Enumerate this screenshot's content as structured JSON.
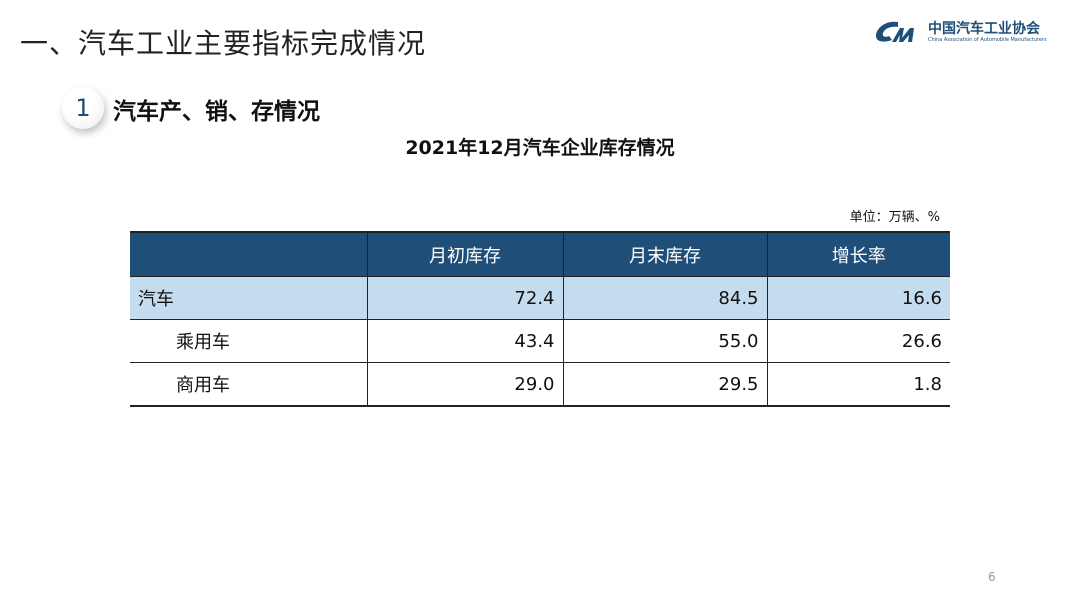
{
  "header": {
    "title": "一、汽车工业主要指标完成情况",
    "logo": {
      "cn": "中国汽车工业协会",
      "en": "China Association of Automobile Manufacturers"
    }
  },
  "section": {
    "number": "1",
    "title": "汽车产、销、存情况"
  },
  "table": {
    "title": "2021年12月汽车企业库存情况",
    "unit": "单位：万辆、%",
    "columns": [
      "",
      "月初库存",
      "月末库存",
      "增长率"
    ],
    "rows": [
      {
        "label": "汽车",
        "values": [
          "72.4",
          "84.5",
          "16.6"
        ]
      },
      {
        "label": "乘用车",
        "values": [
          "43.4",
          "55.0",
          "26.6"
        ]
      },
      {
        "label": "商用车",
        "values": [
          "29.0",
          "29.5",
          "1.8"
        ]
      }
    ]
  },
  "colors": {
    "header": "#1f4e79",
    "highlight_row": "#c5dcef"
  },
  "page_number": "6"
}
